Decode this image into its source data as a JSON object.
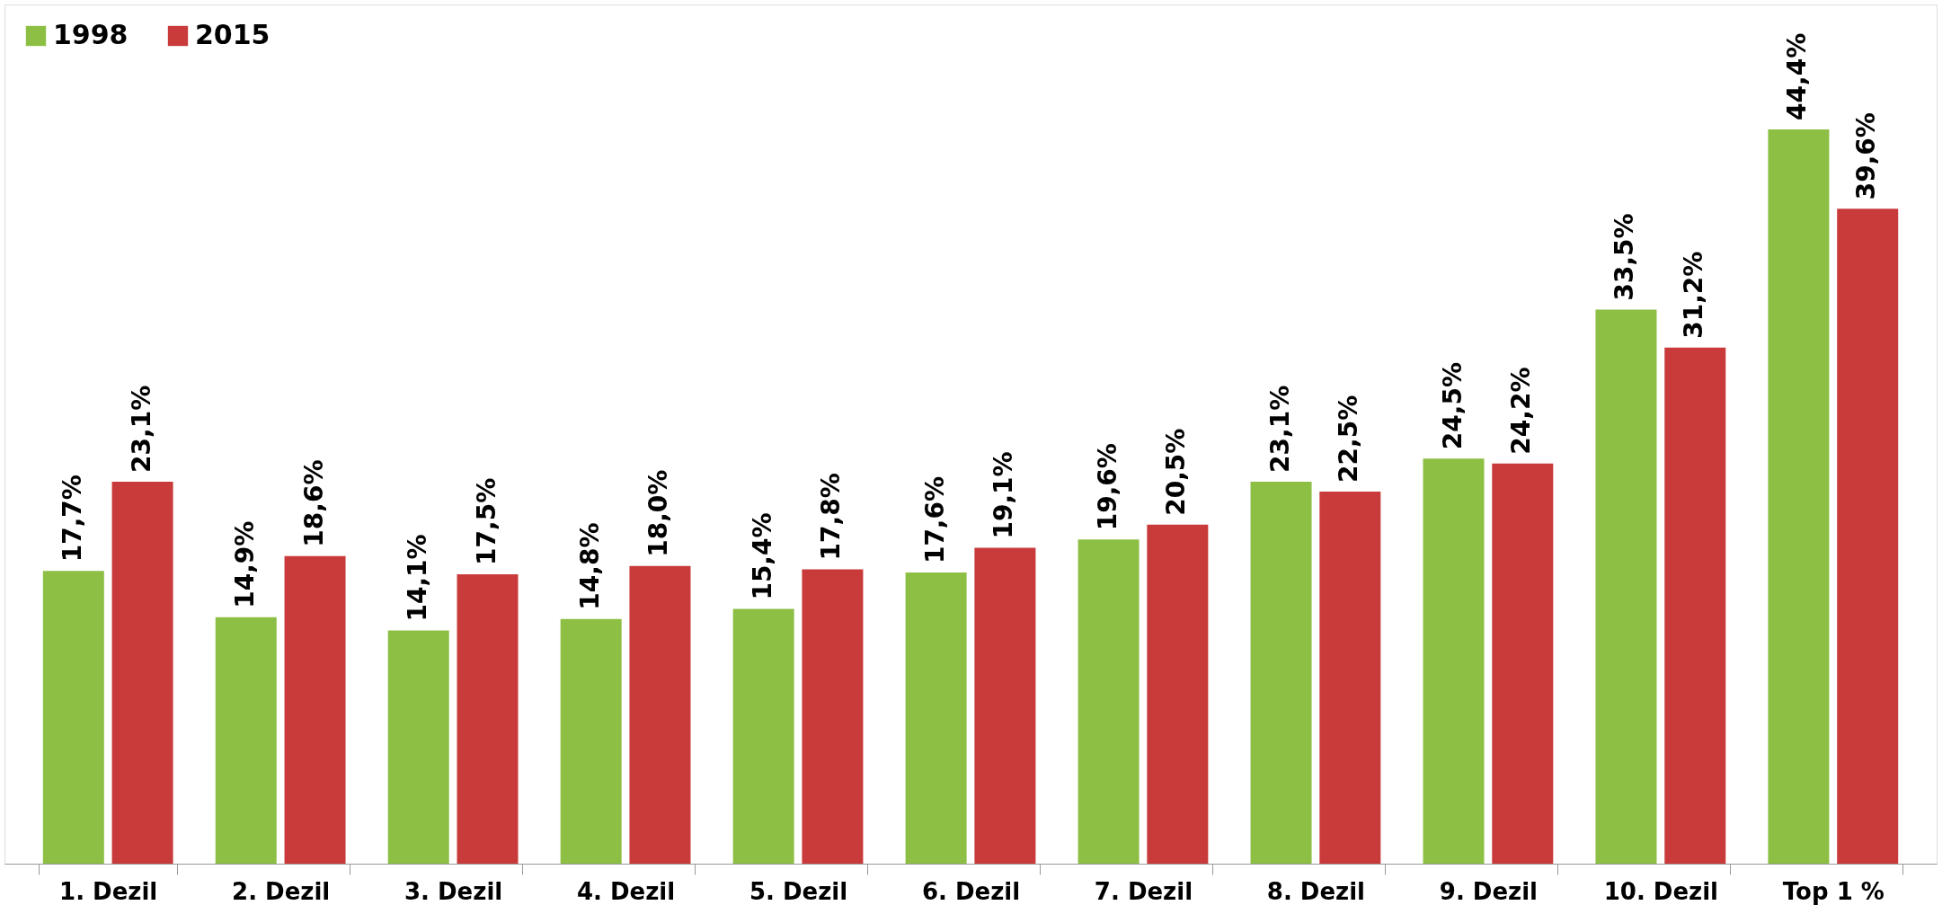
{
  "chart_data": {
    "type": "bar",
    "categories": [
      "1. Dezil",
      "2. Dezil",
      "3. Dezil",
      "4. Dezil",
      "5. Dezil",
      "6. Dezil",
      "7. Dezil",
      "8. Dezil",
      "9. Dezil",
      "10. Dezil",
      "Top 1 %"
    ],
    "legend": "top left",
    "grid": false,
    "series": [
      {
        "name": "1998",
        "color": "#8cbf44",
        "values": [
          17.7,
          14.9,
          14.1,
          14.8,
          15.4,
          17.6,
          19.6,
          23.1,
          24.5,
          33.5,
          44.4
        ],
        "value_labels": [
          "17,7%",
          "14,9%",
          "14,1%",
          "14,8%",
          "15,4%",
          "17,6%",
          "19,6%",
          "23,1%",
          "24,5%",
          "33,5%",
          "44,4%"
        ]
      },
      {
        "name": "2015",
        "color": "#c93a3a",
        "values": [
          23.1,
          18.6,
          17.5,
          18.0,
          17.8,
          19.1,
          20.5,
          22.5,
          24.2,
          31.2,
          39.6
        ],
        "value_labels": [
          "23,1%",
          "18,6%",
          "17,5%",
          "18,0%",
          "17,8%",
          "19,1%",
          "20,5%",
          "22,5%",
          "24,2%",
          "31,2%",
          "39,6%"
        ]
      }
    ]
  }
}
